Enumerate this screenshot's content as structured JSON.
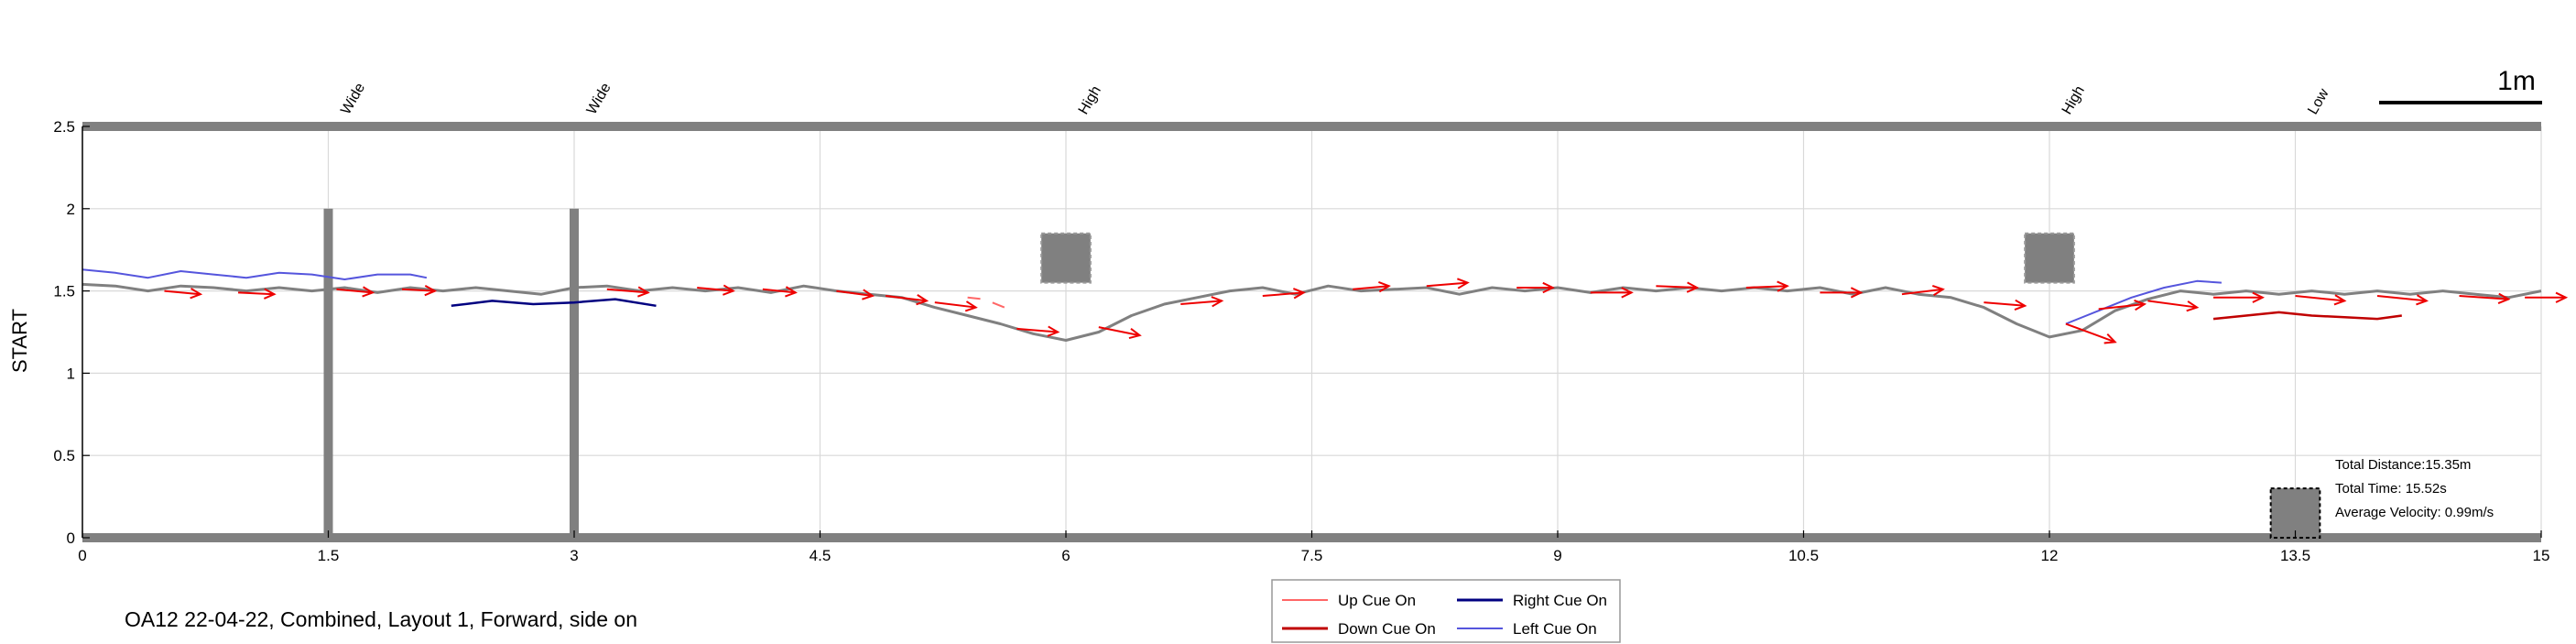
{
  "chart_data": {
    "type": "line",
    "ylabel": "START",
    "xlim": [
      0,
      15
    ],
    "ylim": [
      0,
      2.5
    ],
    "x_ticks": [
      "0",
      "1.5",
      "3",
      "4.5",
      "6",
      "7.5",
      "9",
      "10.5",
      "12",
      "13.5",
      "15"
    ],
    "y_ticks": [
      "0",
      "0.5",
      "1",
      "1.5",
      "2",
      "2.5"
    ],
    "grid": true,
    "scale_bar_label": "1m",
    "obstacle_labels": [
      {
        "x": 1.5,
        "label": "Wide"
      },
      {
        "x": 3,
        "label": "Wide"
      },
      {
        "x": 6,
        "label": "High"
      },
      {
        "x": 12,
        "label": "High"
      },
      {
        "x": 13.5,
        "label": "Low"
      }
    ],
    "obstacles": [
      {
        "type": "wide",
        "x": 1.5,
        "y_range": [
          0,
          2
        ]
      },
      {
        "type": "wide",
        "x": 3,
        "y_range": [
          0,
          2
        ]
      },
      {
        "type": "high",
        "x_range": [
          5.85,
          6.15
        ],
        "y_range": [
          1.55,
          1.85
        ]
      },
      {
        "type": "high",
        "x_range": [
          11.85,
          12.15
        ],
        "y_range": [
          1.55,
          1.85
        ]
      },
      {
        "type": "low",
        "x_range": [
          13.35,
          13.65
        ],
        "y_range": [
          0,
          0.3
        ]
      }
    ],
    "stats": {
      "distance": "Total Distance:15.35m",
      "time": "Total Time: 15.52s",
      "velocity": "Average Velocity: 0.99m/s"
    },
    "legend": {
      "placement": "bottom-center",
      "entries": [
        {
          "label": "Up Cue On",
          "color": "#ff6666"
        },
        {
          "label": "Right Cue On",
          "color": "#000080"
        },
        {
          "label": "Down Cue On",
          "color": "#c00000"
        },
        {
          "label": "Left Cue On",
          "color": "#5555dd"
        }
      ]
    },
    "caption": "OA12 22-04-22, Combined, Layout 1, Forward, side on",
    "colors": {
      "path": "#808080",
      "arrow": "#ee0000",
      "obstacle": "#808080",
      "grid": "#d9d9d9"
    },
    "series": [
      {
        "name": "Path",
        "x": [
          0,
          0.2,
          0.4,
          0.6,
          0.8,
          1.0,
          1.2,
          1.4,
          1.6,
          1.8,
          2.0,
          2.2,
          2.4,
          2.6,
          2.8,
          3.0,
          3.2,
          3.4,
          3.6,
          3.8,
          4.0,
          4.2,
          4.4,
          4.6,
          4.8,
          5.0,
          5.2,
          5.4,
          5.6,
          5.8,
          6.0,
          6.2,
          6.4,
          6.6,
          6.8,
          7.0,
          7.2,
          7.4,
          7.6,
          7.8,
          8.0,
          8.2,
          8.4,
          8.6,
          8.8,
          9.0,
          9.2,
          9.4,
          9.6,
          9.8,
          10.0,
          10.2,
          10.4,
          10.6,
          10.8,
          11.0,
          11.2,
          11.4,
          11.6,
          11.8,
          12.0,
          12.2,
          12.4,
          12.6,
          12.8,
          13.0,
          13.2,
          13.4,
          13.6,
          13.8,
          14.0,
          14.2,
          14.4,
          14.6,
          14.8,
          15.0
        ],
        "y": [
          1.54,
          1.53,
          1.5,
          1.53,
          1.52,
          1.5,
          1.52,
          1.5,
          1.52,
          1.49,
          1.52,
          1.5,
          1.52,
          1.5,
          1.48,
          1.52,
          1.53,
          1.5,
          1.52,
          1.5,
          1.52,
          1.49,
          1.53,
          1.5,
          1.48,
          1.46,
          1.4,
          1.35,
          1.3,
          1.24,
          1.2,
          1.25,
          1.35,
          1.42,
          1.46,
          1.5,
          1.52,
          1.48,
          1.53,
          1.5,
          1.51,
          1.52,
          1.48,
          1.52,
          1.5,
          1.52,
          1.49,
          1.52,
          1.5,
          1.52,
          1.5,
          1.52,
          1.5,
          1.52,
          1.48,
          1.52,
          1.48,
          1.46,
          1.4,
          1.3,
          1.22,
          1.26,
          1.38,
          1.45,
          1.5,
          1.48,
          1.5,
          1.48,
          1.5,
          1.48,
          1.5,
          1.48,
          1.5,
          1.48,
          1.46,
          1.5
        ]
      },
      {
        "name": "Left Cue On",
        "x": [
          0,
          0.2,
          0.4,
          0.6,
          0.8,
          1.0,
          1.2,
          1.4,
          1.6,
          1.8,
          2.0,
          2.1
        ],
        "y": [
          1.63,
          1.61,
          1.58,
          1.62,
          1.6,
          1.58,
          1.61,
          1.6,
          1.57,
          1.6,
          1.6,
          1.58
        ]
      },
      {
        "name": "Right Cue On",
        "x": [
          2.25,
          2.5,
          2.75,
          3.0,
          3.25,
          3.5
        ],
        "y": [
          1.41,
          1.44,
          1.42,
          1.43,
          1.45,
          1.41
        ]
      },
      {
        "name": "Left Cue On",
        "x": [
          12.1,
          12.3,
          12.5,
          12.7,
          12.9,
          13.05
        ],
        "y": [
          1.3,
          1.38,
          1.46,
          1.52,
          1.56,
          1.55
        ]
      },
      {
        "name": "Down Cue On",
        "x": [
          13.0,
          13.2,
          13.4,
          13.6,
          13.8,
          14.0,
          14.15
        ],
        "y": [
          1.33,
          1.35,
          1.37,
          1.35,
          1.34,
          1.33,
          1.35
        ]
      },
      {
        "name": "Up Cue On",
        "x": [
          5.4,
          5.5,
          5.55,
          5.65
        ],
        "y": [
          1.46,
          1.45,
          1.43,
          1.39
        ]
      }
    ],
    "arrows": [
      {
        "x": 0.5,
        "y": 1.5,
        "dx": 0.22,
        "dy": -0.02
      },
      {
        "x": 0.95,
        "y": 1.49,
        "dx": 0.22,
        "dy": -0.01
      },
      {
        "x": 1.55,
        "y": 1.51,
        "dx": 0.22,
        "dy": -0.02
      },
      {
        "x": 1.95,
        "y": 1.51,
        "dx": 0.2,
        "dy": -0.01
      },
      {
        "x": 3.2,
        "y": 1.51,
        "dx": 0.25,
        "dy": -0.02
      },
      {
        "x": 3.75,
        "y": 1.52,
        "dx": 0.22,
        "dy": -0.02
      },
      {
        "x": 4.15,
        "y": 1.51,
        "dx": 0.2,
        "dy": -0.02
      },
      {
        "x": 4.6,
        "y": 1.5,
        "dx": 0.22,
        "dy": -0.03
      },
      {
        "x": 4.9,
        "y": 1.47,
        "dx": 0.25,
        "dy": -0.03
      },
      {
        "x": 5.2,
        "y": 1.43,
        "dx": 0.25,
        "dy": -0.03
      },
      {
        "x": 5.7,
        "y": 1.27,
        "dx": 0.25,
        "dy": -0.02
      },
      {
        "x": 6.2,
        "y": 1.28,
        "dx": 0.25,
        "dy": -0.05
      },
      {
        "x": 6.7,
        "y": 1.42,
        "dx": 0.25,
        "dy": 0.02
      },
      {
        "x": 7.2,
        "y": 1.47,
        "dx": 0.25,
        "dy": 0.02
      },
      {
        "x": 7.75,
        "y": 1.51,
        "dx": 0.22,
        "dy": 0.02
      },
      {
        "x": 8.2,
        "y": 1.53,
        "dx": 0.25,
        "dy": 0.02
      },
      {
        "x": 8.75,
        "y": 1.52,
        "dx": 0.22,
        "dy": 0.0
      },
      {
        "x": 9.2,
        "y": 1.49,
        "dx": 0.25,
        "dy": 0.0
      },
      {
        "x": 9.6,
        "y": 1.53,
        "dx": 0.25,
        "dy": -0.01
      },
      {
        "x": 10.15,
        "y": 1.52,
        "dx": 0.25,
        "dy": 0.01
      },
      {
        "x": 10.6,
        "y": 1.49,
        "dx": 0.25,
        "dy": 0.0
      },
      {
        "x": 11.1,
        "y": 1.48,
        "dx": 0.25,
        "dy": 0.03
      },
      {
        "x": 11.6,
        "y": 1.43,
        "dx": 0.25,
        "dy": -0.02
      },
      {
        "x": 12.1,
        "y": 1.3,
        "dx": 0.3,
        "dy": -0.11
      },
      {
        "x": 12.3,
        "y": 1.39,
        "dx": 0.28,
        "dy": 0.03
      },
      {
        "x": 12.6,
        "y": 1.44,
        "dx": 0.3,
        "dy": -0.04
      },
      {
        "x": 13.0,
        "y": 1.46,
        "dx": 0.3,
        "dy": 0.0
      },
      {
        "x": 13.5,
        "y": 1.47,
        "dx": 0.3,
        "dy": -0.03
      },
      {
        "x": 14.0,
        "y": 1.47,
        "dx": 0.3,
        "dy": -0.03
      },
      {
        "x": 14.5,
        "y": 1.47,
        "dx": 0.3,
        "dy": -0.02
      },
      {
        "x": 14.9,
        "y": 1.46,
        "dx": 0.25,
        "dy": 0.0
      }
    ]
  }
}
